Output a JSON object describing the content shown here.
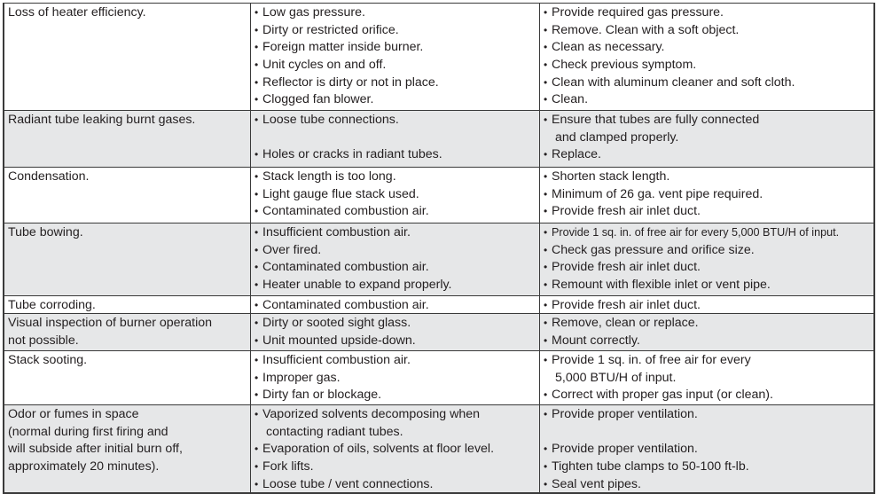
{
  "rows": [
    {
      "problem": [
        "Loss of heater efficiency."
      ],
      "causes": [
        {
          "t": "Low gas pressure.",
          "b": true
        },
        {
          "t": "Dirty or restricted orifice.",
          "b": true
        },
        {
          "t": "Foreign matter inside burner.",
          "b": true
        },
        {
          "t": "Unit cycles on and off.",
          "b": true
        },
        {
          "t": "Reflector is dirty or not in place.",
          "b": true
        },
        {
          "t": "Clogged fan blower.",
          "b": true
        }
      ],
      "remedies": [
        {
          "t": "Provide required gas pressure.",
          "b": true
        },
        {
          "t": "Remove. Clean with a soft object.",
          "b": true
        },
        {
          "t": "Clean as necessary.",
          "b": true
        },
        {
          "t": "Check previous symptom.",
          "b": true
        },
        {
          "t": "Clean with aluminum cleaner and soft cloth.",
          "b": true
        },
        {
          "t": "Clean.",
          "b": true
        }
      ]
    },
    {
      "problem": [
        "Radiant tube leaking burnt gases."
      ],
      "causes": [
        {
          "t": "Loose tube connections.",
          "b": true
        },
        {
          "t": "",
          "b": false
        },
        {
          "t": "Holes or cracks in radiant tubes.",
          "b": true
        }
      ],
      "remedies": [
        {
          "t": "Ensure that tubes are fully connected",
          "b": true
        },
        {
          "t": "and clamped properly.",
          "b": false
        },
        {
          "t": "Replace.",
          "b": true
        }
      ]
    },
    {
      "problem": [
        "Condensation."
      ],
      "causes": [
        {
          "t": "Stack length is too long.",
          "b": true
        },
        {
          "t": "Light gauge flue stack used.",
          "b": true
        },
        {
          "t": "Contaminated combustion air.",
          "b": true
        }
      ],
      "remedies": [
        {
          "t": "Shorten stack length.",
          "b": true
        },
        {
          "t": "Minimum of 26 ga. vent pipe required.",
          "b": true
        },
        {
          "t": "Provide fresh air inlet duct.",
          "b": true
        }
      ]
    },
    {
      "problem": [
        "Tube bowing."
      ],
      "causes": [
        {
          "t": "Insufficient combustion air.",
          "b": true
        },
        {
          "t": "Over fired.",
          "b": true
        },
        {
          "t": "Contaminated combustion air.",
          "b": true
        },
        {
          "t": "Heater unable to expand properly.",
          "b": true
        }
      ],
      "remedies": [
        {
          "t": "Provide 1 sq. in. of free air for every 5,000 BTU/H of input.",
          "b": true,
          "small": true
        },
        {
          "t": "Check gas pressure and orifice size.",
          "b": true
        },
        {
          "t": "Provide fresh air inlet duct.",
          "b": true
        },
        {
          "t": "Remount with flexible inlet or vent pipe.",
          "b": true
        }
      ]
    },
    {
      "problem": [
        "Tube corroding."
      ],
      "causes": [
        {
          "t": "Contaminated combustion air.",
          "b": true
        }
      ],
      "remedies": [
        {
          "t": "Provide fresh air inlet duct.",
          "b": true
        }
      ]
    },
    {
      "problem": [
        "Visual inspection of burner operation",
        "not possible."
      ],
      "causes": [
        {
          "t": "Dirty or sooted sight glass.",
          "b": true
        },
        {
          "t": "Unit mounted upside-down.",
          "b": true
        }
      ],
      "remedies": [
        {
          "t": "Remove, clean or replace.",
          "b": true
        },
        {
          "t": "Mount correctly.",
          "b": true
        }
      ]
    },
    {
      "problem": [
        "Stack sooting."
      ],
      "causes": [
        {
          "t": "Insufficient combustion air.",
          "b": true
        },
        {
          "t": "Improper gas.",
          "b": true
        },
        {
          "t": "Dirty fan or blockage.",
          "b": true
        }
      ],
      "remedies": [
        {
          "t": "Provide 1 sq. in. of free air for every",
          "b": true
        },
        {
          "t": "5,000 BTU/H of input.",
          "b": false
        },
        {
          "t": "Correct with proper gas input (or clean).",
          "b": true
        }
      ]
    },
    {
      "problem": [
        "Odor or fumes in space",
        "(normal during first firing and",
        "will subside after initial burn off,",
        "approximately 20 minutes)."
      ],
      "causes": [
        {
          "t": "Vaporized solvents decomposing when",
          "b": true
        },
        {
          "t": "contacting radiant tubes.",
          "b": false
        },
        {
          "t": "Evaporation of oils, solvents at floor level.",
          "b": true
        },
        {
          "t": "Fork lifts.",
          "b": true
        },
        {
          "t": "Loose tube / vent connections.",
          "b": true
        }
      ],
      "remedies": [
        {
          "t": "Provide proper ventilation.",
          "b": true
        },
        {
          "t": "",
          "b": false
        },
        {
          "t": "Provide proper ventilation.",
          "b": true
        },
        {
          "t": "Tighten tube clamps to 50-100 ft-lb.",
          "b": true
        },
        {
          "t": "Seal vent pipes.",
          "b": true
        }
      ]
    }
  ],
  "colors": {
    "gray_row": "#e6e7e8",
    "border": "#3a3a3a"
  }
}
